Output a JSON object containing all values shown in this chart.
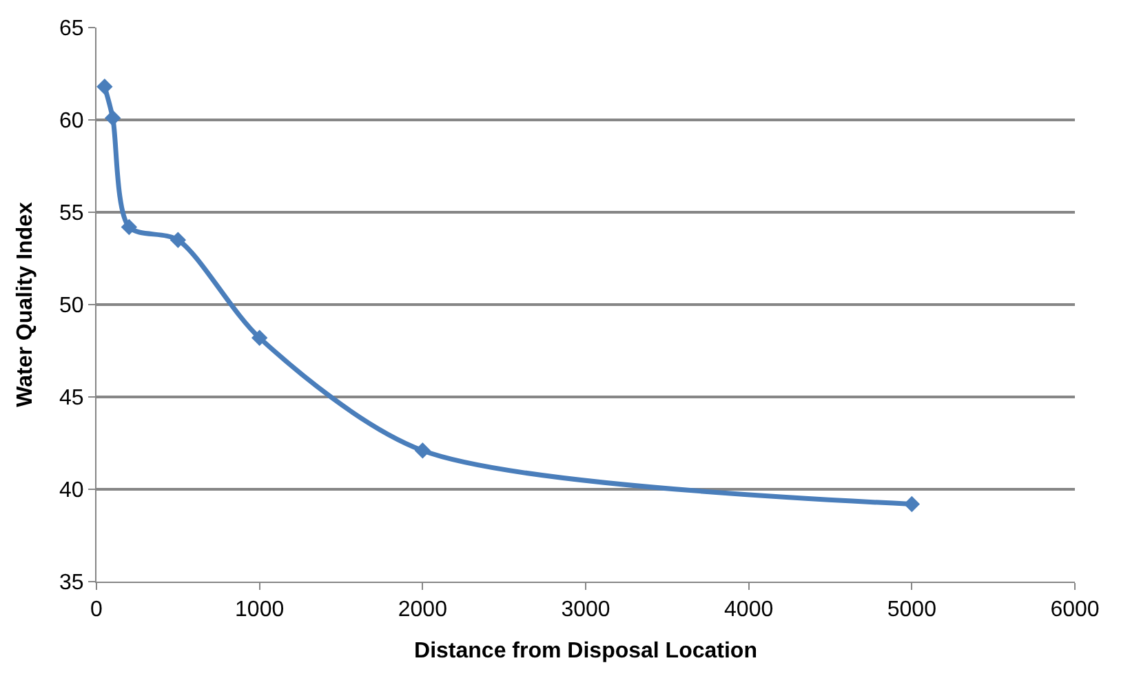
{
  "chart_data": {
    "type": "line",
    "xlabel": "Distance from Disposal Location",
    "ylabel": "Water Quality Index",
    "x": [
      50,
      100,
      200,
      500,
      1000,
      2000,
      5000
    ],
    "series": [
      {
        "color": "#4a7ebb",
        "values": [
          61.8,
          60.1,
          54.2,
          53.5,
          48.2,
          42.1,
          39.2
        ]
      }
    ],
    "xlim": [
      0,
      6000
    ],
    "xticks": [
      0,
      1000,
      2000,
      3000,
      4000,
      5000,
      6000
    ],
    "ylim": [
      35,
      65
    ],
    "yticks": [
      35,
      40,
      45,
      50,
      55,
      60,
      65
    ],
    "grid": "y",
    "marker": "diamond",
    "line_style": "solid"
  }
}
